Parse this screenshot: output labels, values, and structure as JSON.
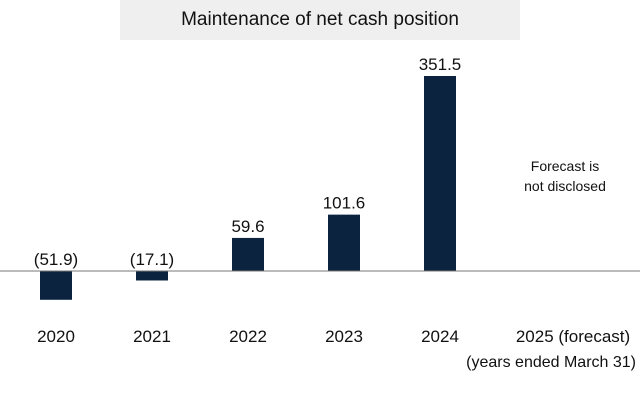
{
  "chart_data": {
    "type": "bar",
    "title": "Maintenance of net cash position",
    "categories": [
      "2020",
      "2021",
      "2022",
      "2023",
      "2024",
      "2025 (forecast)"
    ],
    "values": [
      -51.9,
      -17.1,
      59.6,
      101.6,
      351.5,
      null
    ],
    "value_labels": [
      "(51.9)",
      "(17.1)",
      "59.6",
      "101.6",
      "351.5",
      ""
    ],
    "ylim": [
      -60,
      360
    ],
    "xlabel": "(years ended March 31)",
    "ylabel": "",
    "annotations": [
      "Forecast is",
      "not disclosed"
    ],
    "bar_color": "#0c2340",
    "baseline_color": "#777777",
    "grid": false
  }
}
